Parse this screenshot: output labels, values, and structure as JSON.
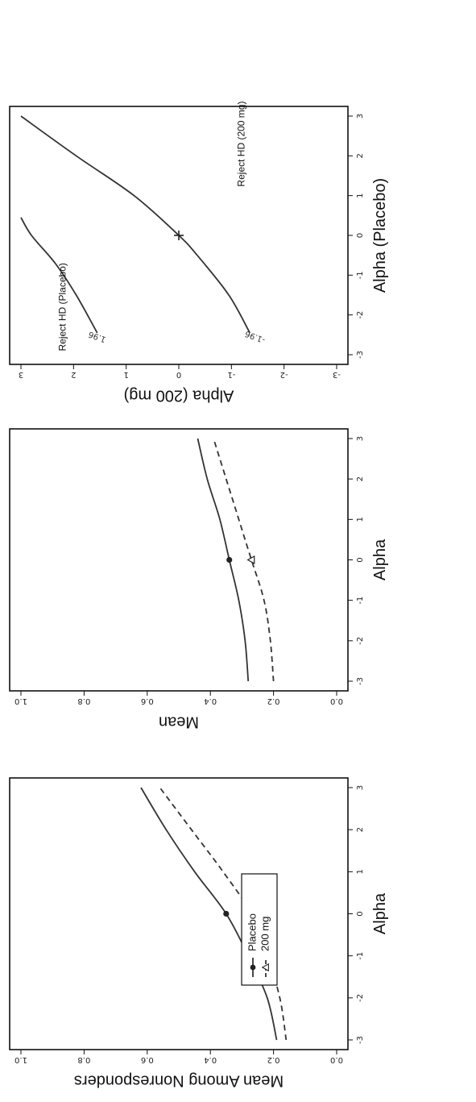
{
  "chart_data": [
    {
      "type": "line",
      "title": "",
      "xlabel": "Alpha",
      "ylabel": "Mean Among Nonresponders",
      "xlim": [
        -3,
        3
      ],
      "ylim": [
        0,
        1
      ],
      "xticks": [
        "-3",
        "-2",
        "-1",
        "0",
        "1",
        "2",
        "3"
      ],
      "yticks": [
        "0.0",
        "0.2",
        "0.4",
        "0.6",
        "0.8",
        "1.0"
      ],
      "legend": {
        "placement": "top-left",
        "entries": [
          "Placebo",
          "200 mg"
        ]
      },
      "series": [
        {
          "name": "Placebo",
          "style": "solid",
          "marker": "filled-circle",
          "marker_at": 0,
          "x": [
            -3,
            -2,
            -1,
            0,
            1,
            2,
            3
          ],
          "values": [
            0.19,
            0.22,
            0.28,
            0.35,
            0.45,
            0.54,
            0.62
          ]
        },
        {
          "name": "200 mg",
          "style": "dashed",
          "marker": "open-triangle",
          "marker_at": 0,
          "x": [
            -3,
            -2,
            -1,
            0,
            1,
            2,
            3
          ],
          "values": [
            0.16,
            0.18,
            0.22,
            0.27,
            0.36,
            0.46,
            0.56
          ]
        }
      ]
    },
    {
      "type": "line",
      "title": "",
      "xlabel": "Alpha",
      "ylabel": "Mean",
      "xlim": [
        -3,
        3
      ],
      "ylim": [
        0,
        1
      ],
      "xticks": [
        "-3",
        "-2",
        "-1",
        "0",
        "1",
        "2",
        "3"
      ],
      "yticks": [
        "0.0",
        "0.2",
        "0.4",
        "0.6",
        "0.8",
        "1.0"
      ],
      "series": [
        {
          "name": "",
          "style": "solid",
          "marker": "filled-circle",
          "marker_at": 0,
          "x": [
            -3,
            -2,
            -1,
            0,
            1,
            2,
            3
          ],
          "values": [
            0.28,
            0.29,
            0.31,
            0.34,
            0.37,
            0.41,
            0.44
          ]
        },
        {
          "name": "",
          "style": "dashed",
          "marker": "open-triangle",
          "marker_at": 0,
          "x": [
            -3,
            -2,
            -1,
            0,
            1,
            2,
            3
          ],
          "values": [
            0.2,
            0.21,
            0.23,
            0.27,
            0.31,
            0.35,
            0.39
          ]
        }
      ]
    },
    {
      "type": "line",
      "title": "",
      "xlabel": "Alpha (Placebo)",
      "ylabel": "Alpha (200 mg)",
      "xlim": [
        -3,
        3
      ],
      "ylim": [
        -3,
        3
      ],
      "xticks": [
        "-3",
        "-2",
        "-1",
        "0",
        "1",
        "2",
        "3"
      ],
      "yticks": [
        "-3",
        "-2",
        "-1",
        "0",
        "1",
        "2",
        "3"
      ],
      "annotations": [
        {
          "text": "Reject HD (Placebo)",
          "x": -1.8,
          "y": 2.2
        },
        {
          "text": "Reject HD (200 mg)",
          "x": 2.3,
          "y": -1.2
        }
      ],
      "marker_point": {
        "x": 0,
        "y": 0,
        "marker": "plus"
      },
      "contours": [
        {
          "label": "1.96",
          "label_at": [
            -2.55,
            1.55
          ],
          "x": [
            -2.45,
            -1.5,
            -0.7,
            0.0,
            0.45
          ],
          "y": [
            1.55,
            1.95,
            2.35,
            2.8,
            3.0
          ]
        },
        {
          "label": "-1.96",
          "label_at": [
            -2.55,
            -1.45
          ],
          "x": [
            -2.45,
            -1.5,
            -0.5,
            0.0,
            1.0,
            2.0,
            3.0
          ],
          "y": [
            -1.35,
            -0.95,
            -0.35,
            0.0,
            0.85,
            1.95,
            3.0
          ]
        }
      ]
    }
  ]
}
